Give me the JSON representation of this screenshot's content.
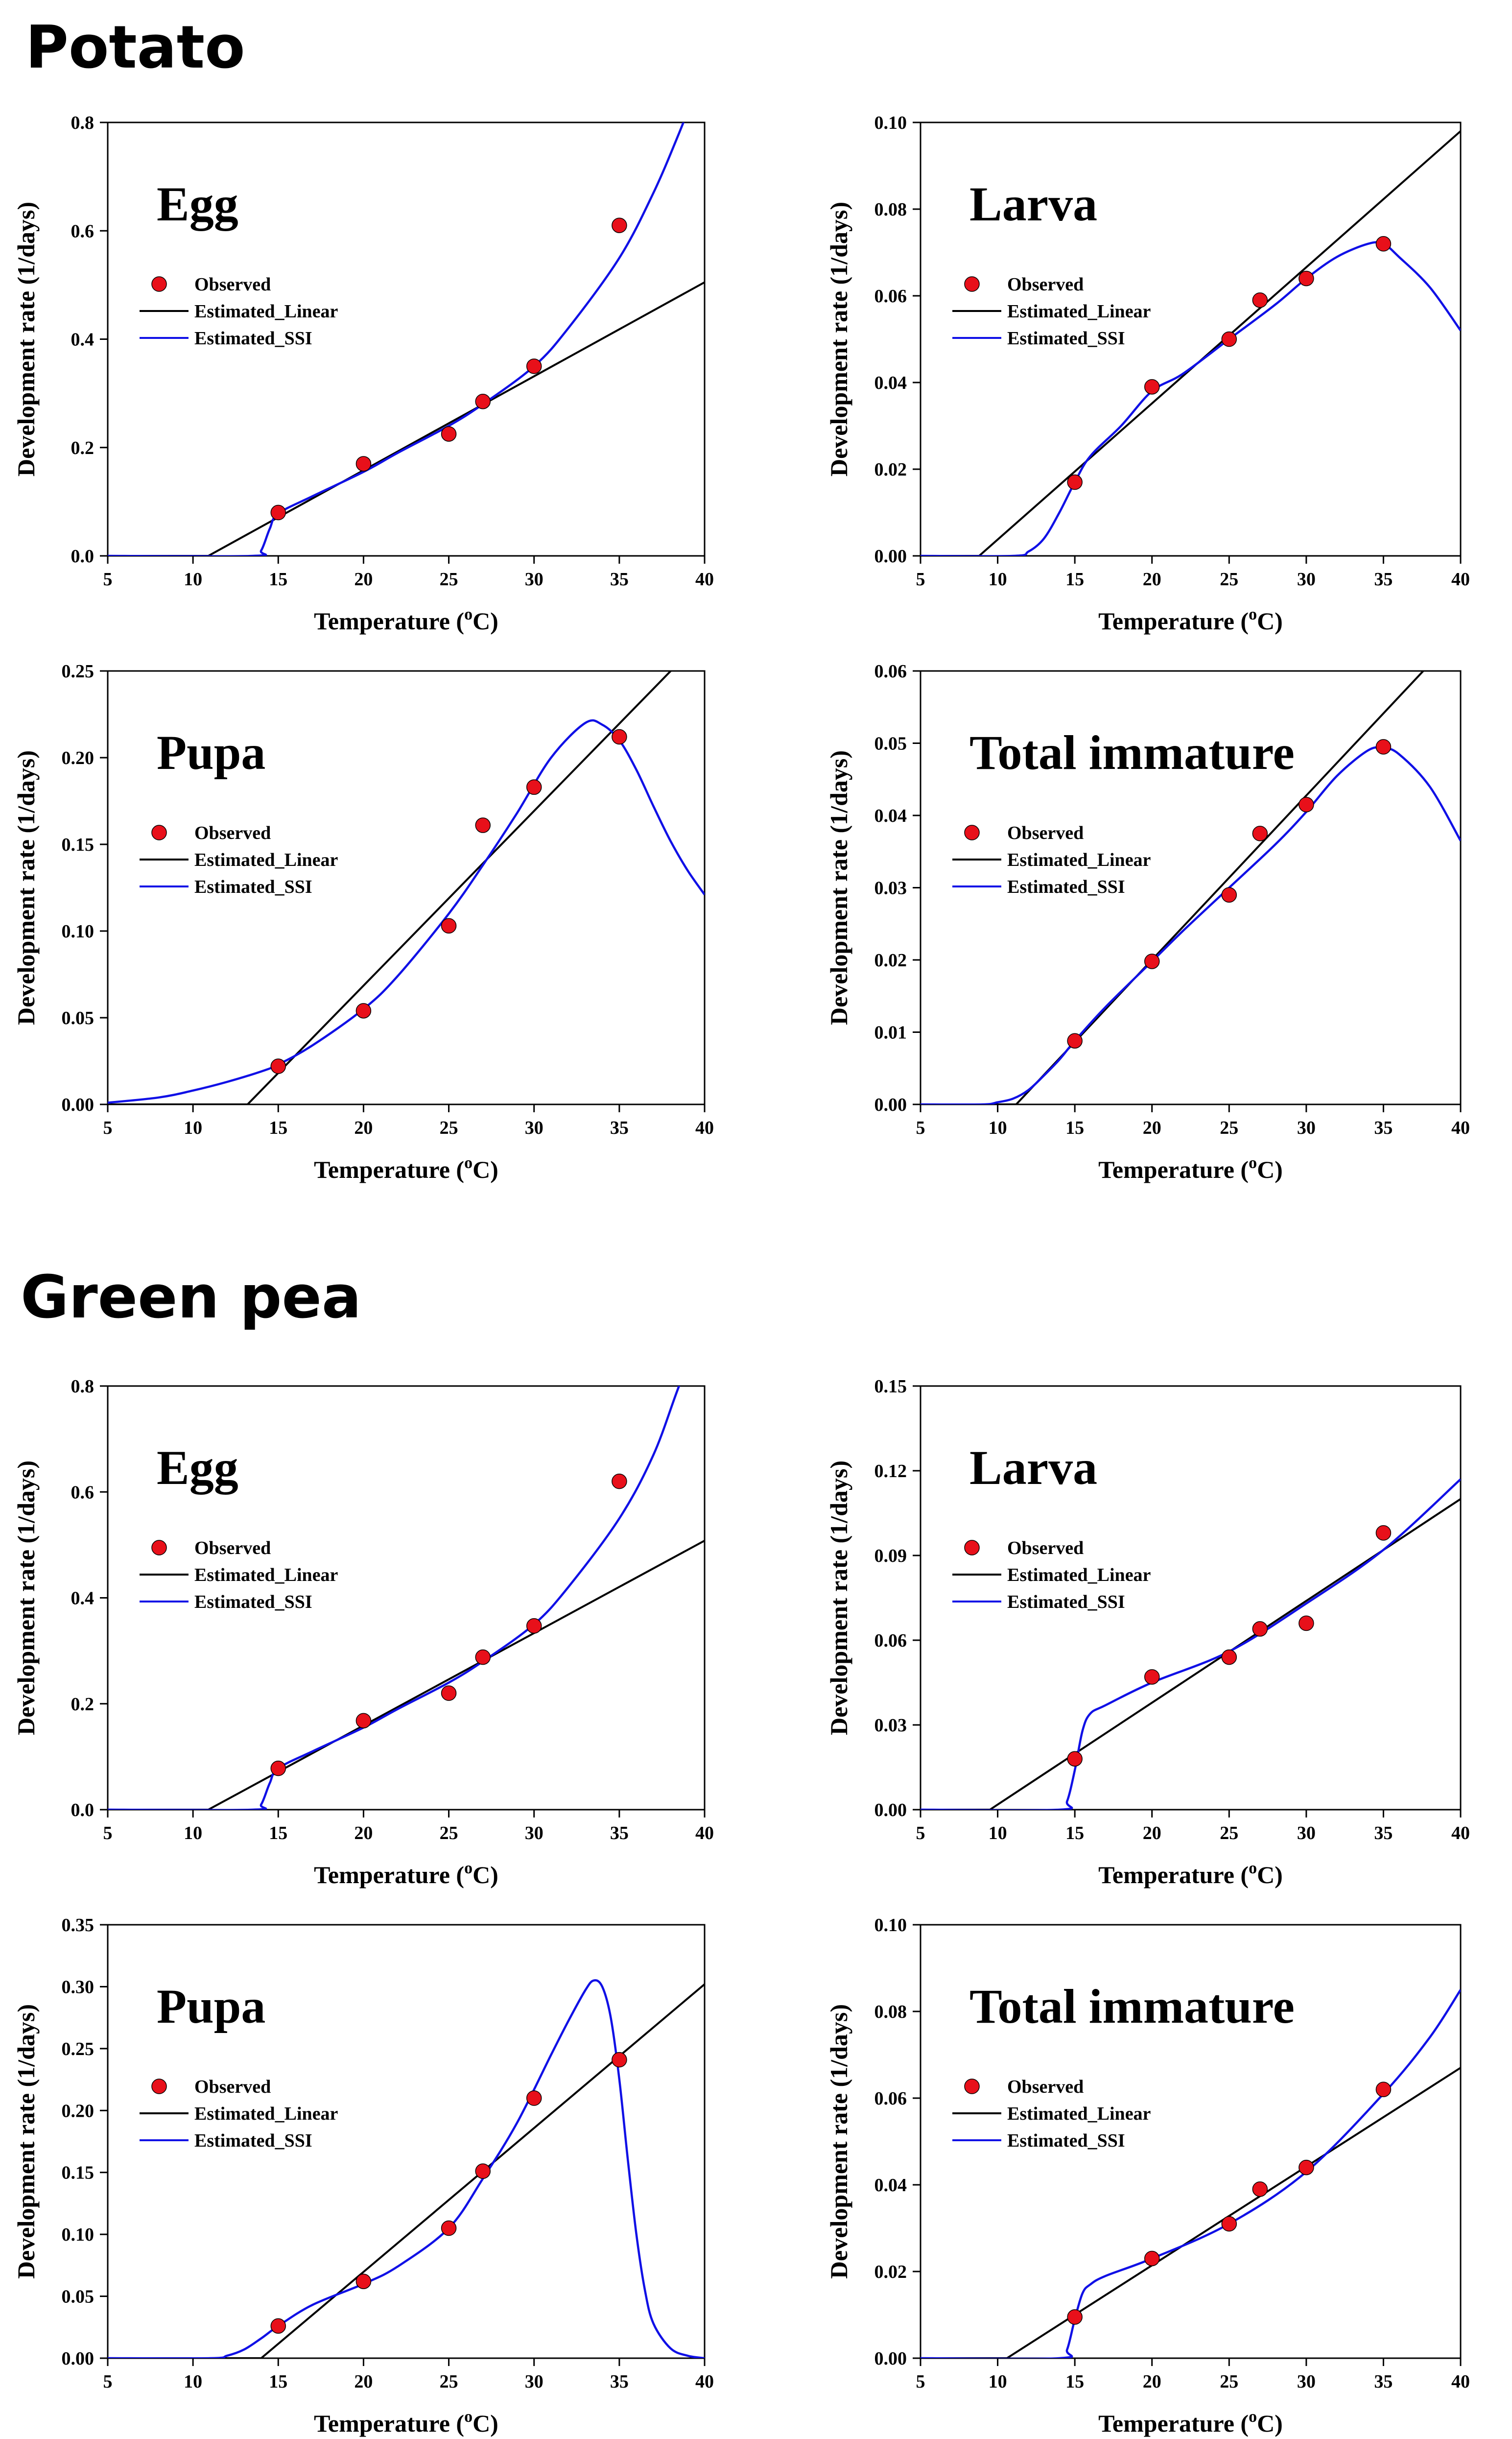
{
  "sections": [
    {
      "title": "Potato"
    },
    {
      "title": "Green pea"
    }
  ],
  "colors": {
    "observed": "#e8101a",
    "linear": "#000000",
    "ssi": "#1010e6"
  },
  "legend": {
    "observed": "Observed",
    "linear": "Estimated_Linear",
    "ssi": "Estimated_SSI"
  },
  "chart_data": [
    {
      "type": "line",
      "host": "Potato",
      "title": "Egg",
      "xlabel": "Temperature (oC)",
      "ylabel": "Development rate (1/days)",
      "xlim": [
        5,
        40
      ],
      "ylim": [
        0,
        0.8
      ],
      "xticks": [
        5,
        10,
        15,
        20,
        25,
        30,
        35,
        40
      ],
      "yticks": [
        "0.0",
        "0.2",
        "0.4",
        "0.6",
        "0.8"
      ],
      "observed": {
        "x": [
          15,
          20,
          25,
          27,
          30,
          35
        ],
        "y": [
          0.08,
          0.17,
          0.225,
          0.285,
          0.35,
          0.61
        ]
      },
      "linear": {
        "x": [
          5,
          10.9,
          40
        ],
        "y": [
          0,
          0,
          0.505
        ]
      },
      "ssi": {
        "x": [
          5,
          13.5,
          14,
          14.5,
          15,
          17,
          20,
          22,
          25,
          27,
          30,
          32,
          35,
          37,
          38.5,
          40
        ],
        "y": [
          0,
          0,
          0.01,
          0.05,
          0.078,
          0.11,
          0.155,
          0.19,
          0.24,
          0.28,
          0.35,
          0.42,
          0.55,
          0.67,
          0.78,
          0.9
        ]
      },
      "legend_position": "top-left"
    },
    {
      "type": "line",
      "host": "Potato",
      "title": "Larva",
      "xlabel": "Temperature (oC)",
      "ylabel": "Development rate (1/days)",
      "xlim": [
        5,
        40
      ],
      "ylim": [
        0,
        0.1
      ],
      "xticks": [
        5,
        10,
        15,
        20,
        25,
        30,
        35,
        40
      ],
      "yticks": [
        "0.00",
        "0.02",
        "0.04",
        "0.06",
        "0.08",
        "0.10"
      ],
      "observed": {
        "x": [
          15,
          20,
          25,
          27,
          30,
          35
        ],
        "y": [
          0.017,
          0.039,
          0.05,
          0.059,
          0.064,
          0.072
        ]
      },
      "linear": {
        "x": [
          5,
          8.8,
          40
        ],
        "y": [
          0,
          0,
          0.098
        ]
      },
      "ssi": {
        "x": [
          5,
          11,
          12,
          13,
          14,
          15,
          16,
          18,
          20,
          22,
          25,
          28,
          30,
          32,
          34,
          35,
          36,
          38,
          40
        ],
        "y": [
          0,
          0,
          0.001,
          0.004,
          0.01,
          0.017,
          0.023,
          0.03,
          0.038,
          0.042,
          0.05,
          0.058,
          0.064,
          0.069,
          0.072,
          0.072,
          0.069,
          0.062,
          0.052
        ]
      },
      "legend_position": "top-left"
    },
    {
      "type": "line",
      "host": "Potato",
      "title": "Pupa",
      "xlabel": "Temperature (oC)",
      "ylabel": "Development rate (1/days)",
      "xlim": [
        5,
        40
      ],
      "ylim": [
        0,
        0.25
      ],
      "xticks": [
        5,
        10,
        15,
        20,
        25,
        30,
        35,
        40
      ],
      "yticks": [
        "0.00",
        "0.05",
        "0.10",
        "0.15",
        "0.20",
        "0.25"
      ],
      "observed": {
        "x": [
          15,
          20,
          25,
          27,
          30,
          35
        ],
        "y": [
          0.022,
          0.054,
          0.103,
          0.161,
          0.183,
          0.212
        ]
      },
      "linear": {
        "x": [
          5,
          13.2,
          40
        ],
        "y": [
          0,
          0,
          0.27
        ]
      },
      "ssi": {
        "x": [
          5,
          8,
          10,
          12,
          14,
          15,
          17,
          20,
          22,
          25,
          27,
          29,
          31,
          33,
          34,
          35,
          36,
          37,
          38,
          39,
          40
        ],
        "y": [
          0.001,
          0.004,
          0.008,
          0.013,
          0.019,
          0.023,
          0.034,
          0.055,
          0.074,
          0.11,
          0.138,
          0.168,
          0.2,
          0.22,
          0.219,
          0.21,
          0.193,
          0.172,
          0.152,
          0.135,
          0.121
        ]
      },
      "legend_position": "top-left"
    },
    {
      "type": "line",
      "host": "Potato",
      "title": "Total immature",
      "xlabel": "Temperature (oC)",
      "ylabel": "Development rate (1/days)",
      "xlim": [
        5,
        40
      ],
      "ylim": [
        0,
        0.06
      ],
      "xticks": [
        5,
        10,
        15,
        20,
        25,
        30,
        35,
        40
      ],
      "yticks": [
        "0.00",
        "0.01",
        "0.02",
        "0.03",
        "0.04",
        "0.05",
        "0.06"
      ],
      "observed": {
        "x": [
          15,
          20,
          25,
          27,
          30,
          35
        ],
        "y": [
          0.0088,
          0.0198,
          0.029,
          0.0375,
          0.0415,
          0.0495
        ]
      },
      "linear": {
        "x": [
          5,
          11.2,
          40
        ],
        "y": [
          0,
          0,
          0.0655
        ]
      },
      "ssi": {
        "x": [
          5,
          9,
          10,
          11,
          12,
          13,
          14,
          15,
          17,
          20,
          22,
          25,
          28,
          30,
          32,
          34,
          35,
          36,
          38,
          40
        ],
        "y": [
          0,
          0,
          0.0003,
          0.0008,
          0.002,
          0.004,
          0.0062,
          0.0088,
          0.0135,
          0.0198,
          0.024,
          0.03,
          0.036,
          0.0405,
          0.0455,
          0.049,
          0.0493,
          0.0485,
          0.044,
          0.0365
        ]
      },
      "legend_position": "top-left"
    },
    {
      "type": "line",
      "host": "Green pea",
      "title": "Egg",
      "xlabel": "Temperature (oC)",
      "ylabel": "Development rate (1/days)",
      "xlim": [
        5,
        40
      ],
      "ylim": [
        0,
        0.8
      ],
      "xticks": [
        5,
        10,
        15,
        20,
        25,
        30,
        35,
        40
      ],
      "yticks": [
        "0.0",
        "0.2",
        "0.4",
        "0.6",
        "0.8"
      ],
      "observed": {
        "x": [
          15,
          20,
          25,
          27,
          30,
          35
        ],
        "y": [
          0.078,
          0.168,
          0.22,
          0.288,
          0.347,
          0.62
        ]
      },
      "linear": {
        "x": [
          5,
          10.9,
          40
        ],
        "y": [
          0,
          0,
          0.508
        ]
      },
      "ssi": {
        "x": [
          5,
          13.5,
          14,
          14.5,
          15,
          17,
          20,
          22,
          25,
          27,
          30,
          32,
          35,
          37,
          38.5,
          40
        ],
        "y": [
          0,
          0,
          0.01,
          0.05,
          0.078,
          0.11,
          0.155,
          0.19,
          0.24,
          0.28,
          0.35,
          0.42,
          0.55,
          0.67,
          0.8,
          0.92
        ]
      },
      "legend_position": "top-left"
    },
    {
      "type": "line",
      "host": "Green pea",
      "title": "Larva",
      "xlabel": "Temperature (oC)",
      "ylabel": "Development rate (1/days)",
      "xlim": [
        5,
        40
      ],
      "ylim": [
        0,
        0.15
      ],
      "xticks": [
        5,
        10,
        15,
        20,
        25,
        30,
        35,
        40
      ],
      "yticks": [
        "0.00",
        "0.03",
        "0.06",
        "0.09",
        "0.12",
        "0.15"
      ],
      "observed": {
        "x": [
          15,
          20,
          25,
          27,
          30,
          35
        ],
        "y": [
          0.018,
          0.047,
          0.054,
          0.064,
          0.066,
          0.098
        ]
      },
      "linear": {
        "x": [
          5,
          9.5,
          40
        ],
        "y": [
          0,
          0,
          0.11
        ]
      },
      "ssi": {
        "x": [
          5,
          14,
          14.5,
          15,
          15.5,
          16,
          17,
          20,
          25,
          30,
          35,
          40
        ],
        "y": [
          0,
          0,
          0.003,
          0.014,
          0.028,
          0.034,
          0.037,
          0.045,
          0.056,
          0.073,
          0.092,
          0.117
        ]
      },
      "legend_position": "top-left"
    },
    {
      "type": "line",
      "host": "Green pea",
      "title": "Pupa",
      "xlabel": "Temperature (oC)",
      "ylabel": "Development rate (1/days)",
      "xlim": [
        5,
        40
      ],
      "ylim": [
        0,
        0.35
      ],
      "xticks": [
        5,
        10,
        15,
        20,
        25,
        30,
        35,
        40
      ],
      "yticks": [
        "0.00",
        "0.05",
        "0.10",
        "0.15",
        "0.20",
        "0.25",
        "0.30",
        "0.35"
      ],
      "observed": {
        "x": [
          15,
          20,
          25,
          27,
          30,
          35
        ],
        "y": [
          0.026,
          0.062,
          0.105,
          0.151,
          0.21,
          0.241
        ]
      },
      "linear": {
        "x": [
          5,
          14,
          40
        ],
        "y": [
          0,
          0,
          0.302
        ]
      },
      "ssi": {
        "x": [
          5,
          11,
          12,
          13,
          14,
          15,
          17,
          20,
          22,
          25,
          27,
          29,
          31,
          32,
          33,
          33.5,
          34,
          34.5,
          35,
          35.5,
          36,
          36.5,
          37,
          38,
          39,
          40
        ],
        "y": [
          0,
          0,
          0.002,
          0.007,
          0.016,
          0.026,
          0.043,
          0.06,
          0.074,
          0.105,
          0.145,
          0.19,
          0.245,
          0.272,
          0.297,
          0.305,
          0.3,
          0.275,
          0.225,
          0.16,
          0.1,
          0.055,
          0.028,
          0.008,
          0.002,
          0
        ]
      },
      "legend_position": "top-left"
    },
    {
      "type": "line",
      "host": "Green pea",
      "title": "Total immature",
      "xlabel": "Temperature (oC)",
      "ylabel": "Development rate (1/days)",
      "xlim": [
        5,
        40
      ],
      "ylim": [
        0,
        0.1
      ],
      "xticks": [
        5,
        10,
        15,
        20,
        25,
        30,
        35,
        40
      ],
      "yticks": [
        "0.00",
        "0.02",
        "0.04",
        "0.06",
        "0.08",
        "0.10"
      ],
      "observed": {
        "x": [
          15,
          20,
          25,
          27,
          30,
          35
        ],
        "y": [
          0.0095,
          0.023,
          0.031,
          0.039,
          0.044,
          0.062
        ]
      },
      "linear": {
        "x": [
          5,
          10.6,
          40
        ],
        "y": [
          0,
          0,
          0.067
        ]
      },
      "ssi": {
        "x": [
          5,
          14,
          14.5,
          15,
          15.5,
          16,
          17,
          20,
          25,
          30,
          35,
          38,
          40
        ],
        "y": [
          0,
          0,
          0.002,
          0.009,
          0.015,
          0.017,
          0.019,
          0.023,
          0.031,
          0.043,
          0.061,
          0.074,
          0.085
        ]
      },
      "legend_position": "top-left"
    }
  ]
}
